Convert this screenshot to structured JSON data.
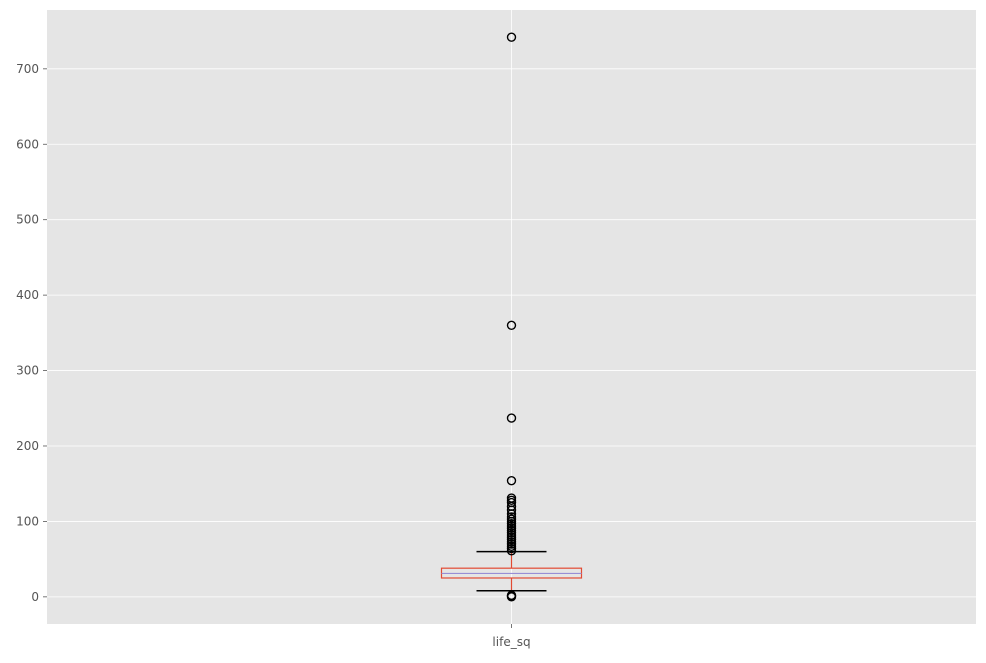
{
  "chart_data": {
    "type": "boxplot",
    "title": "",
    "xlabel": "",
    "ylabel": "",
    "categories": [
      "life_sq"
    ],
    "ylim": [
      -36,
      778
    ],
    "yticks": [
      0,
      100,
      200,
      300,
      400,
      500,
      600,
      700
    ],
    "grid": true,
    "boxes": [
      {
        "label": "life_sq",
        "whisker_low": 8,
        "q1": 25,
        "median": 31,
        "q3": 38,
        "whisker_high": 60,
        "outliers": [
          742,
          360,
          237,
          154,
          131,
          128,
          125,
          120,
          115,
          110,
          106,
          103,
          100,
          97,
          94,
          91,
          88,
          85,
          82,
          79,
          76,
          73,
          70,
          67,
          64,
          61,
          0,
          1,
          2
        ]
      }
    ],
    "colors": {
      "background": "#E5E5E5",
      "grid": "#FFFFFF",
      "box": "#E24A33",
      "median": "#988ED5",
      "whisker_cap": "#000000"
    }
  }
}
